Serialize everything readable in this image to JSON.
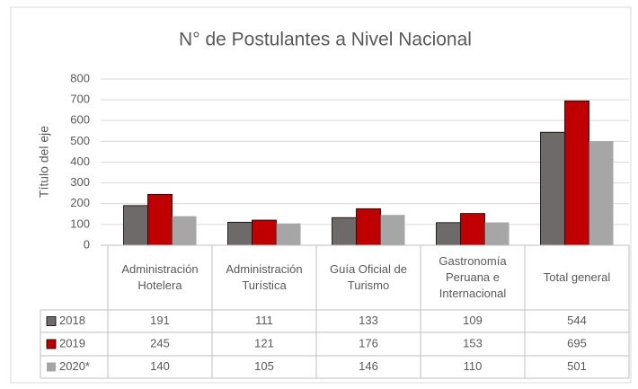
{
  "chart_data": {
    "type": "bar",
    "title": "N° de Postulantes a Nivel Nacional",
    "y_label": "Título del eje",
    "categories": [
      "Administración Hotelera",
      "Administración Turística",
      "Guía Oficial de Turismo",
      "Gastronomía Peruana e Internacional",
      "Total general"
    ],
    "series": [
      {
        "name": "2018",
        "color": "#6f6a6a",
        "values": [
          191,
          111,
          133,
          109,
          544
        ]
      },
      {
        "name": "2019",
        "color": "#c00000",
        "values": [
          245,
          121,
          176,
          153,
          695
        ]
      },
      {
        "name": "2020*",
        "color": "#a6a6a6",
        "values": [
          140,
          105,
          146,
          110,
          501
        ]
      }
    ],
    "ylim": [
      0,
      800
    ],
    "yticks": [
      0,
      100,
      200,
      300,
      400,
      500,
      600,
      700,
      800
    ],
    "grid": true,
    "data_table": true
  }
}
